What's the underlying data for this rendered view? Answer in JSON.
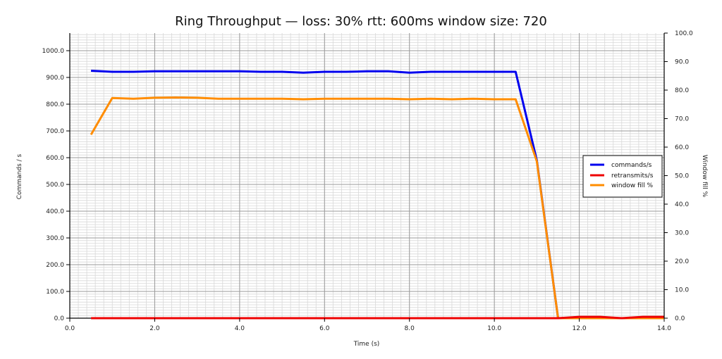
{
  "title": "Ring Throughput — loss: 30%  rtt: 600ms  window size: 720",
  "chart_data": {
    "type": "line",
    "title": "Ring Throughput — loss: 30%  rtt: 600ms  window size: 720",
    "xlabel": "Time (s)",
    "ylabel": "Commands / s",
    "y2label": "Window fill %",
    "xlim": [
      0,
      14
    ],
    "ylim": [
      0,
      1070
    ],
    "y2lim": [
      0,
      100
    ],
    "x_ticks": [
      "0.0",
      "2.0",
      "4.0",
      "6.0",
      "8.0",
      "10.0",
      "12.0",
      "14.0"
    ],
    "y_ticks": [
      "0.0",
      "100.0",
      "200.0",
      "300.0",
      "400.0",
      "500.0",
      "600.0",
      "700.0",
      "800.0",
      "900.0",
      "1000.0"
    ],
    "y2_ticks": [
      "0.0",
      "10.0",
      "20.0",
      "30.0",
      "40.0",
      "50.0",
      "60.0",
      "70.0",
      "80.0",
      "90.0",
      "100.0"
    ],
    "grid": true,
    "legend_position": "right-center",
    "x": [
      0.5,
      1.0,
      1.5,
      2.0,
      2.5,
      3.0,
      3.5,
      4.0,
      4.5,
      5.0,
      5.5,
      6.0,
      6.5,
      7.0,
      7.5,
      8.0,
      8.5,
      9.0,
      9.5,
      10.0,
      10.5,
      11.0,
      11.5,
      12.0,
      12.5,
      13.0,
      13.5,
      14.0
    ],
    "series": [
      {
        "name": "commands/s",
        "axis": "left",
        "color": "#0000ee",
        "values": [
          925,
          921,
          921,
          923,
          923,
          923,
          923,
          923,
          921,
          921,
          918,
          921,
          921,
          923,
          923,
          918,
          921,
          921,
          921,
          921,
          921,
          590,
          0,
          0,
          0,
          0,
          0,
          0
        ]
      },
      {
        "name": "retransmits/s",
        "axis": "left",
        "color": "#ee0000",
        "values": [
          0,
          0,
          0,
          0,
          0,
          0,
          0,
          0,
          0,
          0,
          0,
          0,
          0,
          0,
          0,
          0,
          0,
          0,
          0,
          0,
          0,
          0,
          0,
          5,
          5,
          0,
          5,
          5
        ]
      },
      {
        "name": "window fill %",
        "axis": "right",
        "color": "#ff8c00",
        "values": [
          64.4,
          77.2,
          77.0,
          77.3,
          77.4,
          77.3,
          77.0,
          77.0,
          77.0,
          77.0,
          76.8,
          77.0,
          77.0,
          77.0,
          77.0,
          76.8,
          77.0,
          76.8,
          77.0,
          76.8,
          76.8,
          55.0,
          0,
          0,
          0,
          0,
          0,
          0
        ]
      }
    ]
  }
}
